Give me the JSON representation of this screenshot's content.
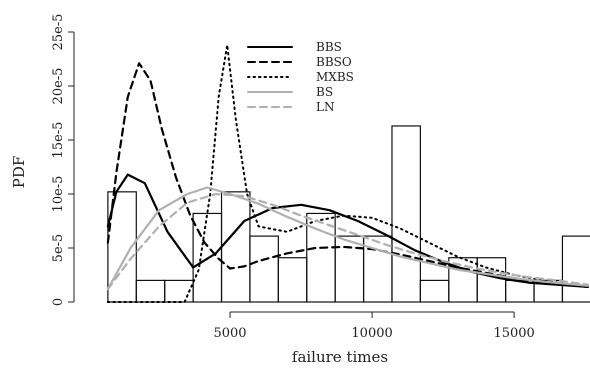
{
  "chart_data": {
    "type": "histogram-with-density-lines",
    "title": "",
    "xlabel": "failure times",
    "ylabel": "PDF",
    "xlim": [
      0,
      17600
    ],
    "ylim": [
      0,
      0.00025
    ],
    "x_ticks": [
      5000,
      10000,
      15000
    ],
    "x_tick_labels": [
      "5000",
      "10000",
      "15000"
    ],
    "y_ticks": [
      0,
      5e-05,
      0.0001,
      0.00015,
      0.0002,
      0.00025
    ],
    "y_tick_labels": [
      "0",
      "5e-5",
      "10e-5",
      "15e-5",
      "20e-5",
      "25e-5"
    ],
    "grid": false,
    "legend_position": "top-center",
    "histogram": {
      "bin_edges": [
        700,
        1700,
        2700,
        3700,
        4700,
        5700,
        6700,
        7700,
        8700,
        9700,
        10700,
        11700,
        12700,
        13700,
        14700,
        15700,
        16700,
        17700
      ],
      "heights": [
        0.000102,
        2e-05,
        2e-05,
        8.2e-05,
        0.000102,
        6.1e-05,
        4.1e-05,
        8.2e-05,
        6.1e-05,
        6.1e-05,
        0.000163,
        2e-05,
        4.1e-05,
        4.1e-05,
        2e-05,
        2e-05,
        6.1e-05
      ]
    },
    "series": [
      {
        "name": "BBS",
        "color": "#000000",
        "dash": "solid",
        "x": [
          700,
          1000,
          1400,
          2000,
          2800,
          3700,
          4500,
          5500,
          6500,
          7500,
          8500,
          9500,
          10500,
          11500,
          12500,
          13500,
          14500,
          15500,
          16500,
          17600
        ],
        "y": [
          7e-05,
          0.000102,
          0.000118,
          0.00011,
          6.5e-05,
          3.2e-05,
          4.5e-05,
          7.5e-05,
          8.7e-05,
          9e-05,
          8.5e-05,
          7.5e-05,
          6.2e-05,
          4.8e-05,
          3.7e-05,
          2.8e-05,
          2.2e-05,
          1.8e-05,
          1.6e-05,
          1.4e-05
        ]
      },
      {
        "name": "BBSO",
        "color": "#000000",
        "dash": "dashed",
        "x": [
          700,
          1000,
          1400,
          1800,
          2200,
          2600,
          3100,
          3600,
          4100,
          4600,
          5000,
          5500,
          6000,
          7000,
          8000,
          9000,
          10000,
          11000,
          12000,
          13000,
          14000,
          15000,
          16000,
          17600
        ],
        "y": [
          5.5e-05,
          0.00012,
          0.00019,
          0.000221,
          0.000205,
          0.00016,
          0.000115,
          8e-05,
          5.5e-05,
          4e-05,
          3.1e-05,
          3.3e-05,
          3.8e-05,
          4.5e-05,
          5e-05,
          5.1e-05,
          4.9e-05,
          4.4e-05,
          3.8e-05,
          3.2e-05,
          2.7e-05,
          2.2e-05,
          1.8e-05,
          1.4e-05
        ]
      },
      {
        "name": "MXBS",
        "color": "#000000",
        "dash": "dotted",
        "x": [
          700,
          1500,
          2500,
          3400,
          3900,
          4300,
          4600,
          4900,
          5200,
          5600,
          6000,
          7000,
          8000,
          9000,
          10000,
          11000,
          12000,
          13000,
          14000,
          15000,
          16000,
          17600
        ],
        "y": [
          0,
          0,
          0,
          0,
          3e-05,
          0.0001,
          0.00019,
          0.000238,
          0.00017,
          0.0001,
          7e-05,
          6.5e-05,
          7.5e-05,
          8e-05,
          7.8e-05,
          6.8e-05,
          5.5e-05,
          4.2e-05,
          3.2e-05,
          2.5e-05,
          2e-05,
          1.4e-05
        ]
      },
      {
        "name": "BS",
        "color": "#b0b0b0",
        "dash": "solid",
        "x": [
          700,
          1500,
          2500,
          3500,
          4200,
          5000,
          6000,
          7000,
          8000,
          9000,
          10000,
          11000,
          12000,
          13000,
          14000,
          15000,
          16000,
          17600
        ],
        "y": [
          1.2e-05,
          5e-05,
          8.5e-05,
          0.0001,
          0.000106,
          0.0001,
          9.1e-05,
          7.9e-05,
          6.8e-05,
          5.8e-05,
          5e-05,
          4.2e-05,
          3.6e-05,
          3e-05,
          2.6e-05,
          2.2e-05,
          1.9e-05,
          1.5e-05
        ]
      },
      {
        "name": "LN",
        "color": "#b0b0b0",
        "dash": "dashed",
        "x": [
          700,
          1500,
          2500,
          3500,
          4500,
          5500,
          6500,
          7500,
          8500,
          9500,
          10500,
          11500,
          12500,
          13500,
          14500,
          15500,
          16500,
          17600
        ],
        "y": [
          1.2e-05,
          4e-05,
          7e-05,
          9.2e-05,
          0.0001,
          9.8e-05,
          9e-05,
          8e-05,
          7.1e-05,
          6.2e-05,
          5.3e-05,
          4.5e-05,
          3.8e-05,
          3.2e-05,
          2.7e-05,
          2.3e-05,
          2e-05,
          1.6e-05
        ]
      }
    ]
  }
}
